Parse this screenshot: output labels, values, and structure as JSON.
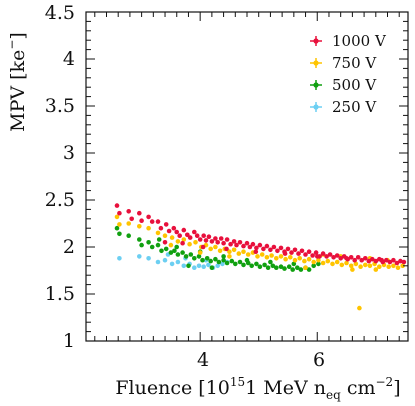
{
  "chart_data": {
    "type": "scatter",
    "title": "",
    "xlabel": {
      "prefix": "Fluence [10",
      "sup": "15",
      "mid": "1 MeV n",
      "sub": "eq",
      "unit": " cm",
      "unit_sup": "−2",
      "suffix": "]"
    },
    "ylabel": {
      "prefix": "MPV [ke",
      "sup": "−",
      "suffix": "]"
    },
    "xlim": [
      2.05,
      7.55
    ],
    "ylim": [
      1.0,
      4.5
    ],
    "xticks": [
      4,
      6
    ],
    "xtick_labels": [
      "4",
      "6"
    ],
    "yticks": [
      1,
      1.5,
      2,
      2.5,
      3,
      3.5,
      4,
      4.5
    ],
    "ytick_labels": [
      "1",
      "1.5",
      "2",
      "2.5",
      "3",
      "3.5",
      "4",
      "4.5"
    ],
    "grid": false,
    "legend_position": "top-right",
    "series": [
      {
        "name": "1000 V",
        "color": "#e8103c",
        "points": [
          [
            2.58,
            2.44
          ],
          [
            2.62,
            2.36
          ],
          [
            2.78,
            2.38
          ],
          [
            2.83,
            2.3
          ],
          [
            2.96,
            2.36
          ],
          [
            3.0,
            2.28
          ],
          [
            3.12,
            2.32
          ],
          [
            3.18,
            2.27
          ],
          [
            3.28,
            2.27
          ],
          [
            3.33,
            2.2
          ],
          [
            3.42,
            2.24
          ],
          [
            3.47,
            2.17
          ],
          [
            3.55,
            2.2
          ],
          [
            3.6,
            2.16
          ],
          [
            3.65,
            2.12
          ],
          [
            3.72,
            2.18
          ],
          [
            3.78,
            2.13
          ],
          [
            3.83,
            2.1
          ],
          [
            3.9,
            2.16
          ],
          [
            3.95,
            2.12
          ],
          [
            4.0,
            2.08
          ],
          [
            4.06,
            2.12
          ],
          [
            4.1,
            2.07
          ],
          [
            4.15,
            2.11
          ],
          [
            4.2,
            2.06
          ],
          [
            4.26,
            2.09
          ],
          [
            4.3,
            2.05
          ],
          [
            4.36,
            2.09
          ],
          [
            4.4,
            2.04
          ],
          [
            4.46,
            2.08
          ],
          [
            4.52,
            2.03
          ],
          [
            4.58,
            2.06
          ],
          [
            4.62,
            2.02
          ],
          [
            4.68,
            2.05
          ],
          [
            4.74,
            2.01
          ],
          [
            4.8,
            2.04
          ],
          [
            4.85,
            2.0
          ],
          [
            4.9,
            2.03
          ],
          [
            4.96,
            1.99
          ],
          [
            5.02,
            2.02
          ],
          [
            5.08,
            1.98
          ],
          [
            5.14,
            2.01
          ],
          [
            5.2,
            1.97
          ],
          [
            5.26,
            2.0
          ],
          [
            5.32,
            1.96
          ],
          [
            5.38,
            1.99
          ],
          [
            5.44,
            1.95
          ],
          [
            5.5,
            1.98
          ],
          [
            5.56,
            1.94
          ],
          [
            5.62,
            1.97
          ],
          [
            5.68,
            1.93
          ],
          [
            5.74,
            1.96
          ],
          [
            5.8,
            1.92
          ],
          [
            5.86,
            1.95
          ],
          [
            5.92,
            1.91
          ],
          [
            5.98,
            1.94
          ],
          [
            6.04,
            1.9
          ],
          [
            6.1,
            1.93
          ],
          [
            6.16,
            1.9
          ],
          [
            6.22,
            1.92
          ],
          [
            6.28,
            1.89
          ],
          [
            6.34,
            1.91
          ],
          [
            6.4,
            1.88
          ],
          [
            6.46,
            1.9
          ],
          [
            6.52,
            1.87
          ],
          [
            6.58,
            1.89
          ],
          [
            6.64,
            1.86
          ],
          [
            6.7,
            1.89
          ],
          [
            6.76,
            1.86
          ],
          [
            6.82,
            1.88
          ],
          [
            6.88,
            1.85
          ],
          [
            6.94,
            1.87
          ],
          [
            7.0,
            1.85
          ],
          [
            7.06,
            1.87
          ],
          [
            7.12,
            1.84
          ],
          [
            7.18,
            1.86
          ],
          [
            7.24,
            1.84
          ],
          [
            7.3,
            1.86
          ],
          [
            7.36,
            1.83
          ],
          [
            7.42,
            1.85
          ],
          [
            7.48,
            1.84
          ],
          [
            3.4,
            2.05
          ],
          [
            3.7,
            2.04
          ],
          [
            4.05,
            2.0
          ],
          [
            4.45,
            1.98
          ],
          [
            4.95,
            1.95
          ],
          [
            5.45,
            1.93
          ],
          [
            6.0,
            1.9
          ],
          [
            6.5,
            1.88
          ],
          [
            7.1,
            1.86
          ]
        ]
      },
      {
        "name": "750 V",
        "color": "#ffc400",
        "points": [
          [
            2.58,
            2.32
          ],
          [
            2.62,
            2.24
          ],
          [
            2.78,
            2.25
          ],
          [
            2.96,
            2.22
          ],
          [
            3.12,
            2.2
          ],
          [
            3.28,
            2.15
          ],
          [
            3.4,
            2.12
          ],
          [
            3.52,
            2.1
          ],
          [
            3.62,
            2.06
          ],
          [
            3.72,
            2.08
          ],
          [
            3.82,
            2.03
          ],
          [
            3.92,
            2.05
          ],
          [
            4.02,
            2.0
          ],
          [
            4.1,
            2.02
          ],
          [
            4.18,
            1.98
          ],
          [
            4.26,
            2.0
          ],
          [
            4.34,
            1.96
          ],
          [
            4.42,
            1.98
          ],
          [
            4.5,
            1.95
          ],
          [
            4.58,
            1.97
          ],
          [
            4.66,
            1.93
          ],
          [
            4.74,
            1.95
          ],
          [
            4.82,
            1.92
          ],
          [
            4.9,
            1.94
          ],
          [
            4.98,
            1.9
          ],
          [
            5.06,
            1.92
          ],
          [
            5.14,
            1.89
          ],
          [
            5.22,
            1.91
          ],
          [
            5.3,
            1.88
          ],
          [
            5.38,
            1.9
          ],
          [
            5.46,
            1.87
          ],
          [
            5.54,
            1.89
          ],
          [
            5.62,
            1.86
          ],
          [
            5.7,
            1.88
          ],
          [
            5.78,
            1.85
          ],
          [
            5.86,
            1.87
          ],
          [
            5.94,
            1.84
          ],
          [
            6.02,
            1.86
          ],
          [
            6.1,
            1.83
          ],
          [
            6.18,
            1.85
          ],
          [
            6.26,
            1.82
          ],
          [
            6.34,
            1.84
          ],
          [
            6.42,
            1.81
          ],
          [
            6.5,
            1.83
          ],
          [
            6.58,
            1.8
          ],
          [
            6.66,
            1.82
          ],
          [
            6.74,
            1.79
          ],
          [
            6.82,
            1.81
          ],
          [
            6.9,
            1.8
          ],
          [
            6.98,
            1.82
          ],
          [
            7.06,
            1.79
          ],
          [
            7.14,
            1.81
          ],
          [
            7.22,
            1.79
          ],
          [
            7.3,
            1.8
          ],
          [
            7.38,
            1.78
          ],
          [
            7.46,
            1.8
          ],
          [
            6.72,
            1.35
          ],
          [
            6.1,
            1.92
          ],
          [
            6.4,
            1.9
          ],
          [
            6.9,
            1.88
          ],
          [
            7.2,
            1.86
          ],
          [
            5.8,
            1.78
          ],
          [
            6.6,
            1.76
          ],
          [
            7.0,
            1.76
          ],
          [
            3.5,
            2.02
          ],
          [
            4.0,
            1.94
          ],
          [
            4.5,
            1.9
          ]
        ]
      },
      {
        "name": "500 V",
        "color": "#10a010",
        "points": [
          [
            2.58,
            2.2
          ],
          [
            2.62,
            2.14
          ],
          [
            2.78,
            2.12
          ],
          [
            2.96,
            2.08
          ],
          [
            3.0,
            2.02
          ],
          [
            3.12,
            2.05
          ],
          [
            3.18,
            2.0
          ],
          [
            3.28,
            2.02
          ],
          [
            3.34,
            1.96
          ],
          [
            3.42,
            1.98
          ],
          [
            3.5,
            1.94
          ],
          [
            3.56,
            1.96
          ],
          [
            3.62,
            1.92
          ],
          [
            3.7,
            1.94
          ],
          [
            3.76,
            1.9
          ],
          [
            3.84,
            1.92
          ],
          [
            3.9,
            1.88
          ],
          [
            3.98,
            1.9
          ],
          [
            4.04,
            1.86
          ],
          [
            4.12,
            1.88
          ],
          [
            4.18,
            1.85
          ],
          [
            4.26,
            1.87
          ],
          [
            4.32,
            1.84
          ],
          [
            4.4,
            1.86
          ],
          [
            4.46,
            1.83
          ],
          [
            4.54,
            1.85
          ],
          [
            4.6,
            1.82
          ],
          [
            4.68,
            1.84
          ],
          [
            4.74,
            1.81
          ],
          [
            4.82,
            1.83
          ],
          [
            4.88,
            1.8
          ],
          [
            4.96,
            1.82
          ],
          [
            5.02,
            1.79
          ],
          [
            5.1,
            1.81
          ],
          [
            5.16,
            1.78
          ],
          [
            5.24,
            1.8
          ],
          [
            5.3,
            1.78
          ],
          [
            5.38,
            1.79
          ],
          [
            5.44,
            1.77
          ],
          [
            5.52,
            1.79
          ],
          [
            5.58,
            1.76
          ],
          [
            5.66,
            1.78
          ],
          [
            5.72,
            1.76
          ],
          [
            5.8,
            1.78
          ],
          [
            5.86,
            1.76
          ],
          [
            5.94,
            1.8
          ],
          [
            6.02,
            1.82
          ],
          [
            3.3,
            2.08
          ],
          [
            3.6,
            2.0
          ],
          [
            4.0,
            1.95
          ],
          [
            4.4,
            1.9
          ],
          [
            4.8,
            1.86
          ],
          [
            5.2,
            1.84
          ],
          [
            5.6,
            1.82
          ],
          [
            3.8,
            1.8
          ],
          [
            4.2,
            1.78
          ]
        ]
      },
      {
        "name": "250 V",
        "color": "#6ccff2",
        "points": [
          [
            2.62,
            1.88
          ],
          [
            2.96,
            1.9
          ],
          [
            3.12,
            1.88
          ],
          [
            3.28,
            1.84
          ],
          [
            3.4,
            1.86
          ],
          [
            3.52,
            1.82
          ],
          [
            3.62,
            1.84
          ],
          [
            3.72,
            1.8
          ],
          [
            3.82,
            1.82
          ],
          [
            3.9,
            1.78
          ],
          [
            3.98,
            1.8
          ],
          [
            4.06,
            1.79
          ],
          [
            4.14,
            1.81
          ],
          [
            4.22,
            1.78
          ],
          [
            4.3,
            1.8
          ],
          [
            4.38,
            1.82
          ],
          [
            4.46,
            1.84
          ],
          [
            3.45,
            1.92
          ],
          [
            3.75,
            1.88
          ],
          [
            4.1,
            1.86
          ]
        ]
      }
    ]
  }
}
